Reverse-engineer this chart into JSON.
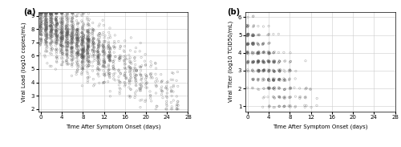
{
  "panel_a": {
    "label": "(a)",
    "xlabel": "Time After Symptom Onset (days)",
    "ylabel": "Viral Load (log10 copies/mL)",
    "xlim": [
      -0.5,
      28
    ],
    "ylim": [
      1.8,
      9.3
    ],
    "xticks": [
      0,
      4,
      8,
      12,
      16,
      20,
      24,
      28
    ],
    "yticks": [
      2,
      3,
      4,
      5,
      6,
      7,
      8,
      9
    ]
  },
  "panel_b": {
    "label": "(b)",
    "xlabel": "Time After Symptom Onset (days)",
    "ylabel": "Viral Titer (log10 TCID50/mL)",
    "xlim": [
      -0.5,
      28
    ],
    "ylim": [
      0.7,
      6.3
    ],
    "xticks": [
      0,
      4,
      8,
      12,
      16,
      20,
      24,
      28
    ],
    "yticks": [
      1,
      2,
      3,
      4,
      5,
      6
    ]
  },
  "marker": {
    "marker": "o",
    "facecolor": "none",
    "edgecolor": "#555555",
    "linewidth": 0.4,
    "size": 3,
    "alpha": 0.45
  },
  "bg": "#ffffff",
  "grid_color": "#cccccc",
  "n_a": 2000,
  "n_b": 600,
  "seed_a": 7,
  "seed_b": 99
}
